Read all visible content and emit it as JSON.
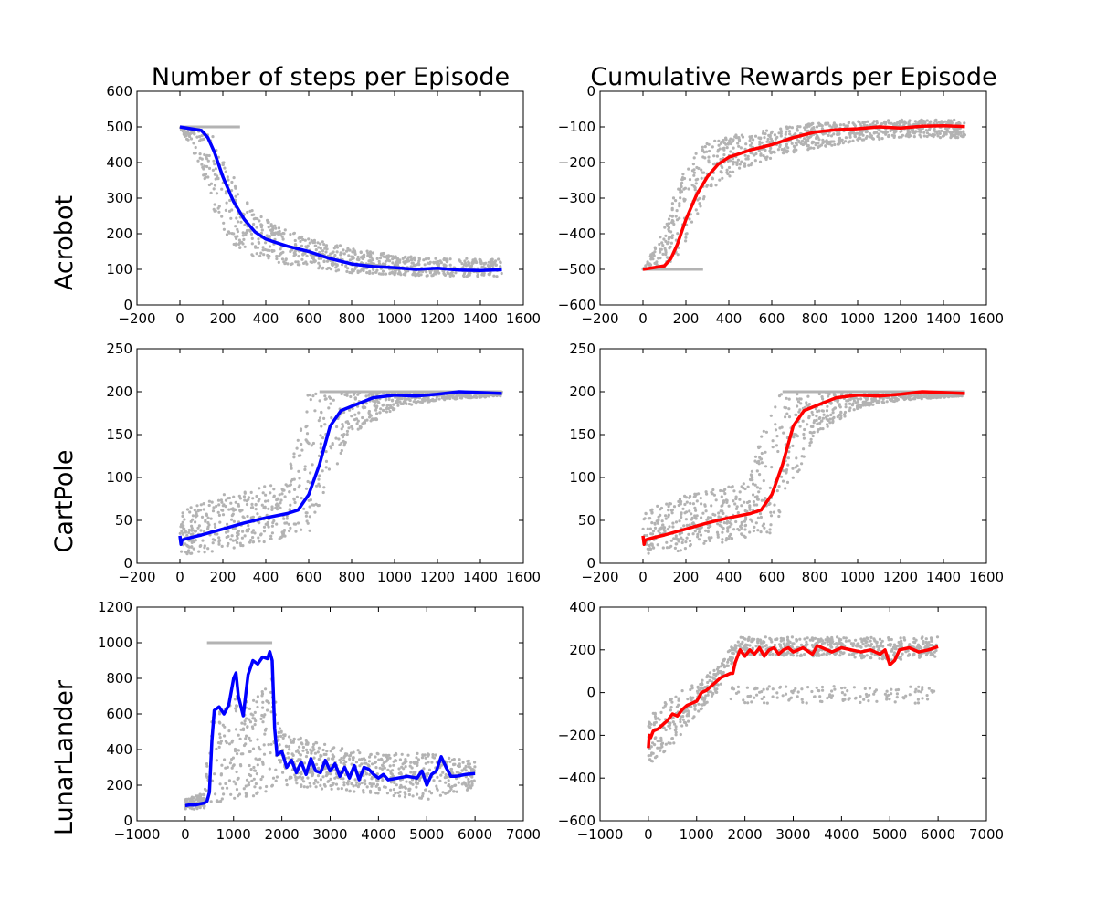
{
  "figure": {
    "column_titles": [
      "Number of steps per Episode",
      "Cumulative Rewards per Episode"
    ],
    "row_labels": [
      "Acrobot",
      "CartPole",
      "LunarLander"
    ]
  },
  "colors": {
    "scatter": "#b3b3b3",
    "steps_line": "#0000ff",
    "reward_line": "#ff0000",
    "axes": "#000000",
    "background": "#ffffff"
  },
  "chart_data": [
    {
      "type": "scatter",
      "row": "Acrobot",
      "column": "Number of steps per Episode",
      "xlim": [
        -200,
        1600
      ],
      "ylim": [
        0,
        600
      ],
      "xticks": [
        -200,
        0,
        200,
        400,
        600,
        800,
        1000,
        1200,
        1400,
        1600
      ],
      "yticks": [
        0,
        100,
        200,
        300,
        400,
        500,
        600
      ],
      "line_color": "#0000ff",
      "running_mean": {
        "x": [
          0,
          50,
          100,
          130,
          160,
          200,
          250,
          300,
          350,
          400,
          450,
          500,
          600,
          700,
          800,
          900,
          1000,
          1100,
          1200,
          1300,
          1400,
          1500
        ],
        "y": [
          500,
          495,
          490,
          470,
          430,
          360,
          290,
          240,
          205,
          185,
          175,
          165,
          150,
          130,
          115,
          108,
          105,
          100,
          103,
          98,
          97,
          99
        ]
      },
      "scatter_band": {
        "x": [
          0,
          100,
          150,
          200,
          250,
          300,
          400,
          500,
          600,
          800,
          1000,
          1200,
          1500
        ],
        "lower": [
          500,
          380,
          280,
          210,
          170,
          145,
          125,
          115,
          105,
          90,
          85,
          80,
          80
        ],
        "upper": [
          500,
          500,
          480,
          430,
          360,
          300,
          240,
          210,
          190,
          160,
          140,
          130,
          130
        ]
      },
      "saturation": {
        "value": 500,
        "x_from": 0,
        "x_to": 280
      },
      "n_points": 1500
    },
    {
      "type": "scatter",
      "row": "Acrobot",
      "column": "Cumulative Rewards per Episode",
      "xlim": [
        -200,
        1600
      ],
      "ylim": [
        -600,
        0
      ],
      "xticks": [
        -200,
        0,
        200,
        400,
        600,
        800,
        1000,
        1200,
        1400,
        1600
      ],
      "yticks": [
        -600,
        -500,
        -400,
        -300,
        -200,
        -100,
        0
      ],
      "line_color": "#ff0000",
      "running_mean": {
        "x": [
          0,
          50,
          100,
          130,
          160,
          200,
          250,
          300,
          350,
          400,
          450,
          500,
          600,
          700,
          800,
          900,
          1000,
          1100,
          1200,
          1300,
          1400,
          1500
        ],
        "y": [
          -500,
          -495,
          -490,
          -470,
          -430,
          -360,
          -290,
          -240,
          -205,
          -185,
          -175,
          -165,
          -150,
          -130,
          -115,
          -108,
          -105,
          -100,
          -103,
          -98,
          -97,
          -99
        ]
      },
      "scatter_band": {
        "x": [
          0,
          100,
          150,
          200,
          250,
          300,
          400,
          500,
          600,
          800,
          1000,
          1200,
          1500
        ],
        "lower": [
          -500,
          -500,
          -480,
          -430,
          -360,
          -300,
          -240,
          -210,
          -190,
          -160,
          -140,
          -130,
          -130
        ],
        "upper": [
          -500,
          -380,
          -280,
          -210,
          -170,
          -145,
          -125,
          -115,
          -105,
          -90,
          -85,
          -80,
          -80
        ]
      },
      "saturation": {
        "value": -500,
        "x_from": 0,
        "x_to": 280
      },
      "n_points": 1500
    },
    {
      "type": "scatter",
      "row": "CartPole",
      "column": "Number of steps per Episode",
      "xlim": [
        -200,
        1600
      ],
      "ylim": [
        0,
        250
      ],
      "xticks": [
        -200,
        0,
        200,
        400,
        600,
        800,
        1000,
        1200,
        1400,
        1600
      ],
      "yticks": [
        0,
        50,
        100,
        150,
        200,
        250
      ],
      "line_color": "#0000ff",
      "running_mean": {
        "x": [
          0,
          5,
          10,
          20,
          50,
          100,
          200,
          300,
          400,
          500,
          550,
          600,
          650,
          700,
          750,
          800,
          850,
          900,
          1000,
          1100,
          1200,
          1300,
          1400,
          1500
        ],
        "y": [
          32,
          22,
          27,
          28,
          30,
          33,
          40,
          47,
          53,
          58,
          62,
          80,
          115,
          160,
          178,
          183,
          188,
          193,
          196,
          195,
          197,
          200,
          199,
          198
        ]
      },
      "scatter_band": {
        "x": [
          0,
          200,
          400,
          500,
          600,
          700,
          800,
          1000,
          1200,
          1500
        ],
        "lower": [
          10,
          15,
          25,
          30,
          35,
          90,
          150,
          180,
          190,
          195
        ],
        "upper": [
          60,
          80,
          90,
          100,
          200,
          200,
          200,
          200,
          200,
          200
        ]
      },
      "saturation": {
        "value": 200,
        "x_from": 650,
        "x_to": 1500
      },
      "n_points": 1500
    },
    {
      "type": "scatter",
      "row": "CartPole",
      "column": "Cumulative Rewards per Episode",
      "xlim": [
        -200,
        1600
      ],
      "ylim": [
        0,
        250
      ],
      "xticks": [
        -200,
        0,
        200,
        400,
        600,
        800,
        1000,
        1200,
        1400,
        1600
      ],
      "yticks": [
        0,
        50,
        100,
        150,
        200,
        250
      ],
      "line_color": "#ff0000",
      "running_mean": {
        "x": [
          0,
          5,
          10,
          20,
          50,
          100,
          200,
          300,
          400,
          500,
          550,
          600,
          650,
          700,
          750,
          800,
          850,
          900,
          1000,
          1100,
          1200,
          1300,
          1400,
          1500
        ],
        "y": [
          32,
          22,
          27,
          28,
          30,
          33,
          40,
          47,
          53,
          58,
          62,
          80,
          115,
          160,
          178,
          183,
          188,
          193,
          196,
          195,
          197,
          200,
          199,
          198
        ]
      },
      "scatter_band": {
        "x": [
          0,
          200,
          400,
          500,
          600,
          700,
          800,
          1000,
          1200,
          1500
        ],
        "lower": [
          10,
          15,
          25,
          30,
          35,
          90,
          150,
          180,
          190,
          195
        ],
        "upper": [
          60,
          80,
          90,
          100,
          200,
          200,
          200,
          200,
          200,
          200
        ]
      },
      "saturation": {
        "value": 200,
        "x_from": 650,
        "x_to": 1500
      },
      "n_points": 1500
    },
    {
      "type": "scatter",
      "row": "LunarLander",
      "column": "Number of steps per Episode",
      "xlim": [
        -1000,
        7000
      ],
      "ylim": [
        0,
        1200
      ],
      "xticks": [
        -1000,
        0,
        1000,
        2000,
        3000,
        4000,
        5000,
        6000,
        7000
      ],
      "yticks": [
        0,
        200,
        400,
        600,
        800,
        1000,
        1200
      ],
      "line_color": "#0000ff",
      "running_mean": {
        "x": [
          0,
          100,
          200,
          300,
          400,
          450,
          500,
          550,
          600,
          700,
          800,
          900,
          1000,
          1050,
          1100,
          1200,
          1300,
          1400,
          1500,
          1600,
          1700,
          1750,
          1800,
          1850,
          1900,
          2000,
          2100,
          2200,
          2300,
          2400,
          2500,
          2600,
          2700,
          2800,
          2900,
          3000,
          3100,
          3200,
          3300,
          3400,
          3500,
          3600,
          3700,
          3800,
          3900,
          4000,
          4100,
          4200,
          4400,
          4600,
          4800,
          4900,
          5000,
          5100,
          5200,
          5300,
          5400,
          5500,
          5600,
          5800,
          6000
        ],
        "y": [
          85,
          90,
          88,
          95,
          100,
          110,
          160,
          450,
          620,
          640,
          600,
          650,
          800,
          830,
          700,
          590,
          820,
          900,
          880,
          920,
          910,
          950,
          900,
          520,
          370,
          390,
          300,
          340,
          270,
          330,
          260,
          350,
          280,
          270,
          340,
          280,
          320,
          250,
          300,
          240,
          310,
          230,
          300,
          290,
          260,
          240,
          260,
          230,
          240,
          250,
          240,
          280,
          200,
          260,
          280,
          360,
          300,
          250,
          250,
          260,
          265
        ]
      },
      "scatter_band": {
        "x": [
          0,
          400,
          500,
          700,
          1000,
          1500,
          1800,
          2000,
          3000,
          4000,
          5000,
          6000
        ],
        "lower": [
          60,
          70,
          80,
          100,
          120,
          140,
          180,
          200,
          170,
          150,
          120,
          180
        ],
        "upper": [
          120,
          160,
          600,
          650,
          700,
          700,
          800,
          500,
          420,
          380,
          380,
          330
        ]
      },
      "saturation": {
        "value": 1000,
        "x_from": 450,
        "x_to": 1800
      },
      "n_points": 6000
    },
    {
      "type": "scatter",
      "row": "LunarLander",
      "column": "Cumulative Rewards per Episode",
      "xlim": [
        -1000,
        7000
      ],
      "ylim": [
        -600,
        400
      ],
      "xticks": [
        -1000,
        0,
        1000,
        2000,
        3000,
        4000,
        5000,
        6000,
        7000
      ],
      "yticks": [
        -600,
        -400,
        -200,
        0,
        200,
        400
      ],
      "line_color": "#ff0000",
      "running_mean": {
        "x": [
          0,
          20,
          50,
          100,
          200,
          300,
          400,
          500,
          600,
          700,
          800,
          900,
          1000,
          1100,
          1200,
          1300,
          1400,
          1500,
          1600,
          1700,
          1750,
          1800,
          1900,
          2000,
          2100,
          2200,
          2300,
          2400,
          2500,
          2600,
          2700,
          2800,
          2900,
          3000,
          3200,
          3400,
          3500,
          3600,
          3800,
          4000,
          4200,
          4400,
          4600,
          4800,
          4900,
          5000,
          5100,
          5200,
          5400,
          5600,
          5800,
          6000
        ],
        "y": [
          -260,
          -200,
          -210,
          -180,
          -170,
          -150,
          -130,
          -100,
          -110,
          -80,
          -60,
          -50,
          -40,
          0,
          10,
          30,
          50,
          70,
          80,
          90,
          90,
          140,
          200,
          170,
          200,
          180,
          210,
          170,
          200,
          210,
          180,
          200,
          210,
          190,
          210,
          180,
          220,
          210,
          190,
          210,
          200,
          190,
          200,
          180,
          200,
          130,
          150,
          200,
          210,
          190,
          200,
          215
        ]
      },
      "scatter_band": {
        "x": [
          0,
          500,
          1000,
          1500,
          1800,
          2000,
          3000,
          4000,
          5000,
          6000
        ],
        "lower": [
          -350,
          -250,
          -100,
          20,
          170,
          180,
          170,
          170,
          150,
          170
        ],
        "upper": [
          -100,
          -20,
          50,
          130,
          260,
          260,
          260,
          260,
          260,
          260
        ]
      },
      "low_cluster": {
        "value": -10,
        "spread": 40,
        "x_from": 1700,
        "x_to": 6000
      },
      "n_points": 6000
    }
  ]
}
